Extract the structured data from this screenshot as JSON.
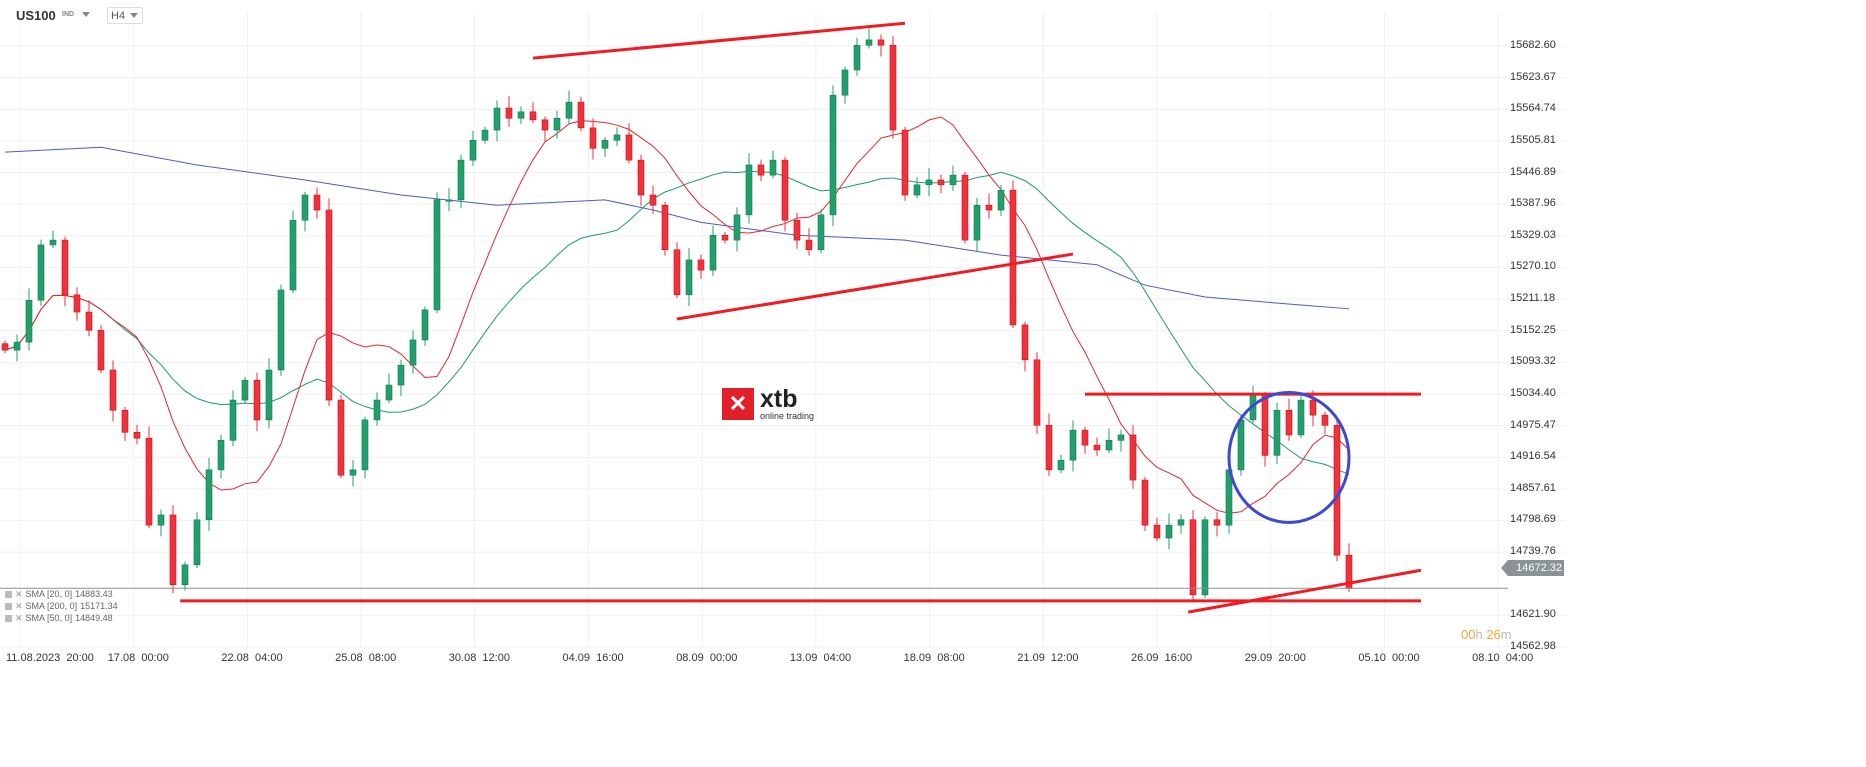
{
  "header": {
    "symbol": "US100",
    "symbol_type": "IND",
    "timeframe": "H4"
  },
  "colors": {
    "bull": "#22a06b",
    "bear": "#f0323c",
    "sma20": "#e8252b",
    "sma50": "#1e9a6a",
    "sma200": "#4a5ccc",
    "drawing": "#f01c24",
    "circle": "#3e48d0",
    "price_tag": "#8a9396",
    "timer": "#f7a53a"
  },
  "legend": [
    {
      "label": "SMA [20, 0]",
      "value": "14883.43"
    },
    {
      "label": "SMA [200, 0]",
      "value": "15171.34"
    },
    {
      "label": "SMA [50, 0]",
      "value": "14849.48"
    }
  ],
  "current_price": "14672.32",
  "timer": {
    "hours": "00",
    "h": "h",
    "minutes": "26",
    "m": "m"
  },
  "logo": {
    "brand": "xtb",
    "tagline": "online trading"
  },
  "chart_data": {
    "type": "candlestick",
    "ylim": [
      14562.98,
      15682.6
    ],
    "y_ticks": [
      "15682.60",
      "15623.67",
      "15564.74",
      "15505.81",
      "15446.89",
      "15387.96",
      "15329.03",
      "15270.10",
      "15211.18",
      "15152.25",
      "15093.32",
      "15034.40",
      "14975.47",
      "14916.54",
      "14857.61",
      "14798.69",
      "14739.76",
      "14621.90",
      "14562.98"
    ],
    "x_ticks": [
      "11.08.2023  20:00",
      "17.08  00:00",
      "22.08  04:00",
      "25.08  08:00",
      "30.08  12:00",
      "04.09  16:00",
      "08.09  00:00",
      "13.09  04:00",
      "18.09  08:00",
      "21.09  12:00",
      "26.09  16:00",
      "29.09  20:00",
      "05.10  00:00",
      "08.10  04:00"
    ],
    "close": [
      15116,
      15131,
      15209,
      15312,
      15321,
      15219,
      15187,
      15153,
      15079,
      15004,
      14963,
      14952,
      14790,
      14809,
      14679,
      14716,
      14800,
      14893,
      14948,
      15023,
      15060,
      14986,
      15079,
      15228,
      15358,
      15405,
      15377,
      15023,
      14883,
      14893,
      14986,
      15023,
      15051,
      15088,
      15135,
      15191,
      15396,
      15396,
      15470,
      15507,
      15526,
      15567,
      15548,
      15560,
      15545,
      15526,
      15548,
      15578,
      15530,
      15492,
      15507,
      15517,
      15470,
      15405,
      15386,
      15303,
      15219,
      15284,
      15265,
      15330,
      15321,
      15368,
      15461,
      15442,
      15470,
      15358,
      15321,
      15303,
      15368,
      15591,
      15638,
      15684,
      15694,
      15684,
      15526,
      15405,
      15424,
      15433,
      15424,
      15442,
      15321,
      15386,
      15377,
      15414,
      15163,
      15098,
      14976,
      14893,
      14911,
      14967,
      14939,
      14930,
      14948,
      14958,
      14874,
      14790,
      14766,
      14790,
      14800,
      14660,
      14800,
      14790,
      14893,
      14986,
      15032,
      14920,
      15004,
      14958,
      15023,
      14995,
      14976,
      14734,
      14672
    ],
    "sma200": [
      [
        0,
        15485
      ],
      [
        8,
        15494
      ],
      [
        16,
        15461
      ],
      [
        25,
        15433
      ],
      [
        33,
        15405
      ],
      [
        41,
        15386
      ],
      [
        50,
        15396
      ],
      [
        54,
        15377
      ],
      [
        58,
        15354
      ],
      [
        66,
        15330
      ],
      [
        75,
        15321
      ],
      [
        83,
        15293
      ],
      [
        91,
        15275
      ],
      [
        95,
        15237
      ],
      [
        100,
        15215
      ],
      [
        108,
        15200
      ],
      [
        112,
        15193
      ]
    ],
    "drawings": {
      "lines": [
        [
          [
            44,
            15660
          ],
          [
            75,
            15725
          ]
        ],
        [
          [
            56,
            15174
          ],
          [
            89,
            15295
          ]
        ],
        [
          [
            90,
            15034
          ],
          [
            118,
            15034
          ]
        ],
        [
          [
            14.6,
            14649
          ],
          [
            118,
            14649
          ]
        ],
        [
          [
            98.6,
            14628
          ],
          [
            118,
            14706
          ]
        ]
      ],
      "circle": {
        "center": [
          107,
          14916
        ],
        "radius_bars": 5,
        "radius_price": 121
      }
    }
  }
}
